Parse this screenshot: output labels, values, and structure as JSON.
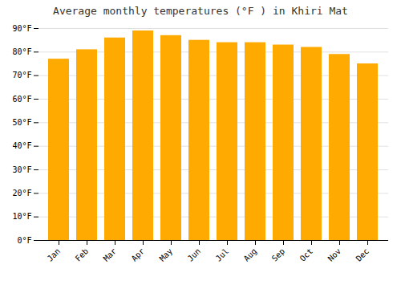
{
  "chart_data": {
    "type": "bar",
    "title": "Average monthly temperatures (°F ) in Khiri Mat",
    "categories": [
      "Jan",
      "Feb",
      "Mar",
      "Apr",
      "May",
      "Jun",
      "Jul",
      "Aug",
      "Sep",
      "Oct",
      "Nov",
      "Dec"
    ],
    "values": [
      77,
      81,
      86,
      89,
      87,
      85,
      84,
      84,
      83,
      82,
      79,
      75
    ],
    "color": "#FFAA00",
    "ylim": [
      0,
      90
    ],
    "yticks": [
      {
        "value": 0,
        "label": "0°F"
      },
      {
        "value": 10,
        "label": "10°F"
      },
      {
        "value": 20,
        "label": "20°F"
      },
      {
        "value": 30,
        "label": "30°F"
      },
      {
        "value": 40,
        "label": "40°F"
      },
      {
        "value": 50,
        "label": "50°F"
      },
      {
        "value": 60,
        "label": "60°F"
      },
      {
        "value": 70,
        "label": "70°F"
      },
      {
        "value": 80,
        "label": "80°F"
      },
      {
        "value": 90,
        "label": "90°F"
      }
    ],
    "grid": true
  }
}
